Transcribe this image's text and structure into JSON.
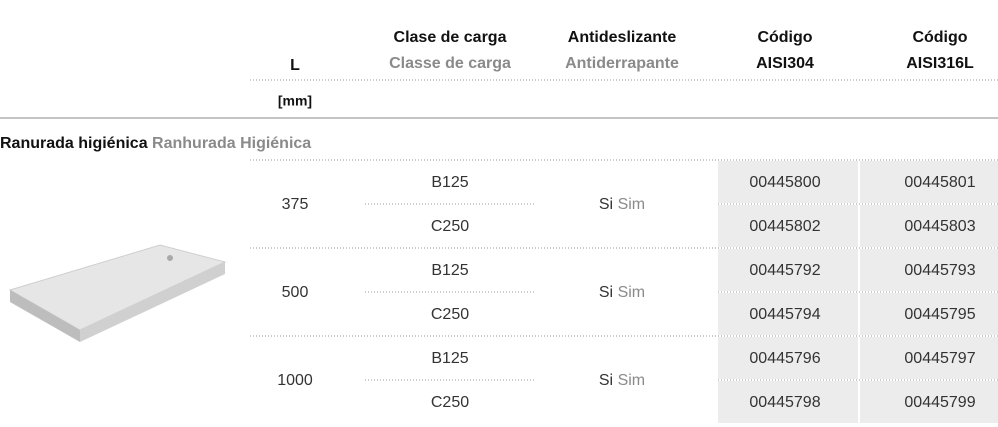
{
  "header": {
    "columns": [
      {
        "line1": "L"
      },
      {
        "line1": "Clase de carga",
        "line2": "Classe de carga"
      },
      {
        "line1": "Antideslizante",
        "line2": "Antiderrapante"
      },
      {
        "line1": "Código",
        "line2": "AISI304"
      },
      {
        "line1": "Código",
        "line2": "AISI316L"
      }
    ],
    "unit": "[mm]"
  },
  "section": {
    "title": "Ranurada higiénica",
    "subtitle": "Ranhurada Higiénica"
  },
  "groups": [
    {
      "length": "375",
      "antislip": {
        "es": "Si",
        "pt": "Sim"
      },
      "rows": [
        {
          "load": "B125",
          "aisi304": "00445800",
          "aisi316l": "00445801"
        },
        {
          "load": "C250",
          "aisi304": "00445802",
          "aisi316l": "00445803"
        }
      ]
    },
    {
      "length": "500",
      "antislip": {
        "es": "Si",
        "pt": "Sim"
      },
      "rows": [
        {
          "load": "B125",
          "aisi304": "00445792",
          "aisi316l": "00445793"
        },
        {
          "load": "C250",
          "aisi304": "00445794",
          "aisi316l": "00445795"
        }
      ]
    },
    {
      "length": "1000",
      "antislip": {
        "es": "Si",
        "pt": "Sim"
      },
      "rows": [
        {
          "load": "B125",
          "aisi304": "00445796",
          "aisi316l": "00445797"
        },
        {
          "load": "C250",
          "aisi304": "00445798",
          "aisi316l": "00445799"
        }
      ]
    }
  ]
}
